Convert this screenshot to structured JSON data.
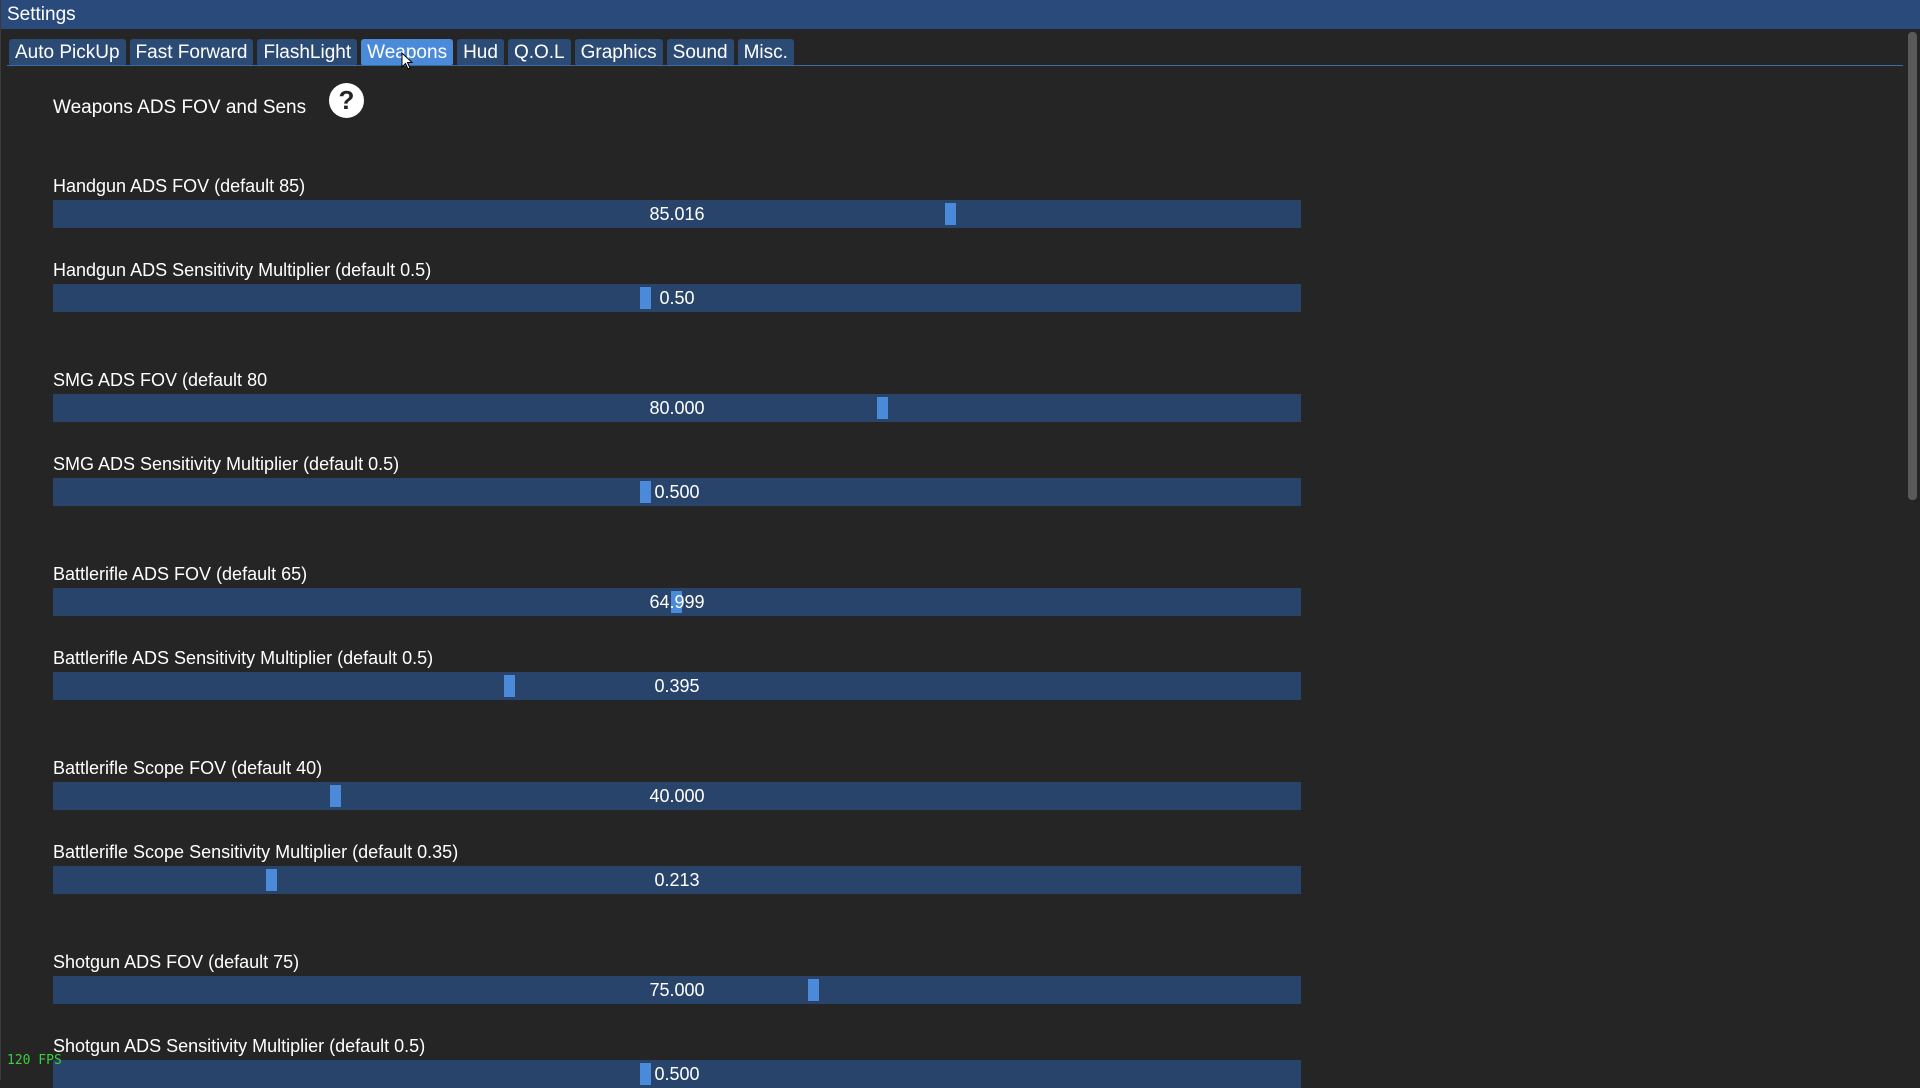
{
  "window": {
    "title": "Settings"
  },
  "tabs": [
    {
      "label": "Auto PickUp",
      "active": false
    },
    {
      "label": "Fast Forward",
      "active": false
    },
    {
      "label": "FlashLight",
      "active": false
    },
    {
      "label": "Weapons",
      "active": true
    },
    {
      "label": "Hud",
      "active": false
    },
    {
      "label": "Q.O.L",
      "active": false
    },
    {
      "label": "Graphics",
      "active": false
    },
    {
      "label": "Sound",
      "active": false
    },
    {
      "label": "Misc.",
      "active": false
    }
  ],
  "section": {
    "title": "Weapons ADS FOV and Sens",
    "help_icon": "question-circle-icon"
  },
  "settings": [
    {
      "label": "Handgun ADS FOV (default 85)",
      "value": "85.016",
      "fraction": 0.719
    },
    {
      "label": "Handgun ADS Sensitivity Multiplier (default 0.5)",
      "value": "0.50",
      "fraction": 0.474
    },
    {
      "label": "SMG ADS FOV (default 80",
      "value": "80.000",
      "fraction": 0.664
    },
    {
      "label": "SMG ADS Sensitivity Multiplier (default 0.5)",
      "value": "0.500",
      "fraction": 0.474
    },
    {
      "label": "Battlerifle ADS FOV (default 65)",
      "value": "64.999",
      "fraction": 0.499
    },
    {
      "label": "Battlerifle ADS Sensitivity Multiplier (default 0.5)",
      "value": "0.395",
      "fraction": 0.365
    },
    {
      "label": "Battlerifle Scope FOV (default 40)",
      "value": "40.000",
      "fraction": 0.226
    },
    {
      "label": "Battlerifle Scope Sensitivity Multiplier (default 0.35)",
      "value": "0.213",
      "fraction": 0.175
    },
    {
      "label": "Shotgun ADS FOV (default 75)",
      "value": "75.000",
      "fraction": 0.609
    },
    {
      "label": "Shotgun ADS Sensitivity Multiplier (default 0.5)",
      "value": "0.500",
      "fraction": 0.474
    }
  ],
  "fps": "120 FPS",
  "colors": {
    "titlebar": "#294a7a",
    "tab": "#2c4b74",
    "tab_active": "#4a8ad8",
    "slider_track": "#29446a",
    "slider_handle": "#4a8ad8",
    "background": "#252525",
    "fps_text": "#3ad03a"
  }
}
